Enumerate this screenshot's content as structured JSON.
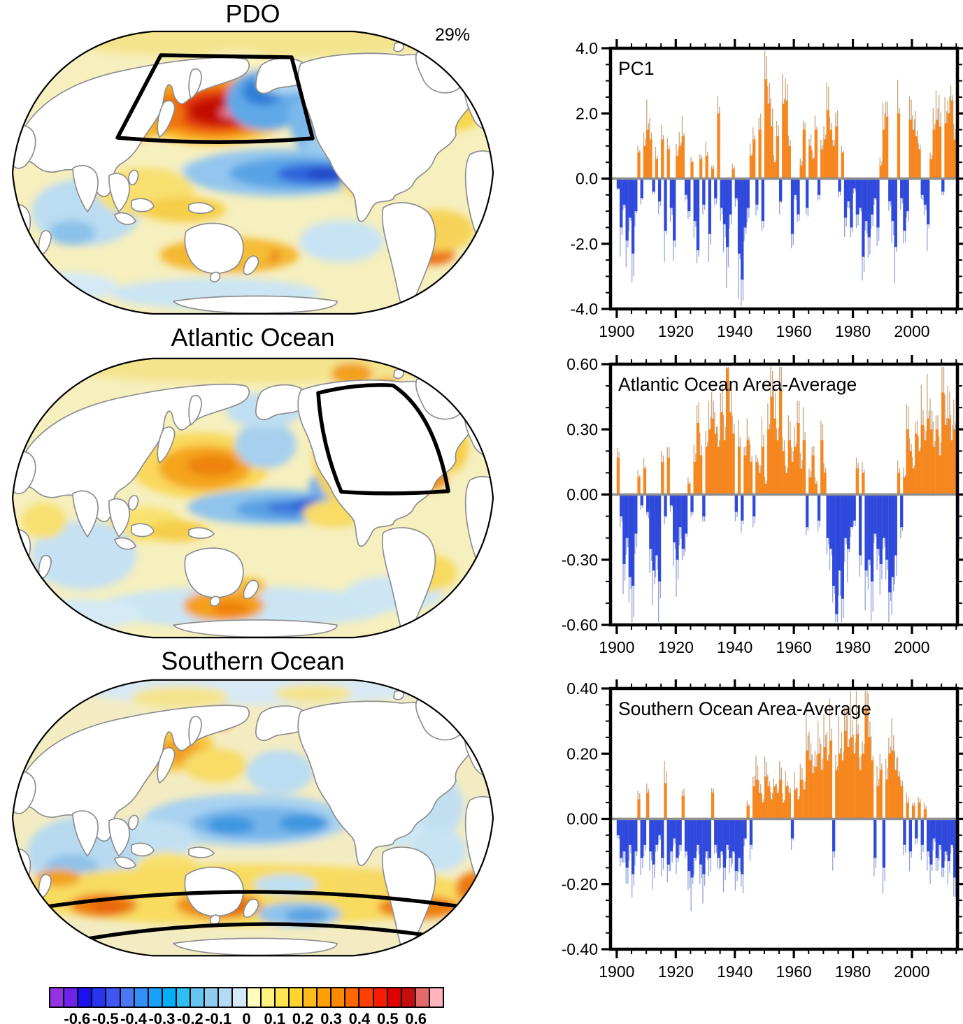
{
  "figure": {
    "maps": [
      {
        "title": "PDO",
        "variance_label": "29%",
        "region_box": "North Pacific"
      },
      {
        "title": "Atlantic Ocean",
        "region_box": "North Atlantic"
      },
      {
        "title": "Southern Ocean",
        "region_box": "Southern Ocean band"
      }
    ],
    "colorbar": {
      "cell_colors": [
        "#9632E6",
        "#6F22EA",
        "#1911EE",
        "#2836F2",
        "#3E57F3",
        "#4A78F5",
        "#3390F8",
        "#19A0FA",
        "#00AFF8",
        "#30BFF4",
        "#63C7F1",
        "#8FCCEE",
        "#B3DBF3",
        "#D4E9F8",
        "#FFFCBE",
        "#FFF380",
        "#FFE550",
        "#FFD42E",
        "#FFBB1C",
        "#FFA106",
        "#FF8A00",
        "#FF6A00",
        "#FF4000",
        "#F91C00",
        "#E10000",
        "#C40D0D",
        "#E26A6A",
        "#FFB4BC"
      ],
      "tick_labels": [
        "-0.6",
        "-0.5",
        "-0.4",
        "-0.3",
        "-0.2",
        "-0.1",
        "0",
        "0.1",
        "0.2",
        "0.3",
        "0.4",
        "0.5",
        "0.6"
      ]
    }
  },
  "chart_data": [
    {
      "type": "bar",
      "title": "PC1",
      "xlabel": "",
      "ylabel": "",
      "x_start": 1900,
      "x_step": 1,
      "x_axis_range": [
        1897.9,
        2015.4
      ],
      "xtick_values": [
        1900,
        1920,
        1940,
        1960,
        1980,
        2000
      ],
      "xminor_step": 5,
      "ylim": [
        -4.0,
        4.0
      ],
      "ytick_values": [
        4.0,
        2.0,
        0.0,
        -2.0,
        -4.0
      ],
      "ytick_labels": [
        "4.0",
        "2.0",
        "0.0",
        "-2.0",
        "-4.0"
      ],
      "yminor_step": 0.5,
      "positive_color": "#F6861E",
      "negative_color": "#2F49DC",
      "series_note": "annual-mean approximation read from figure",
      "values": [
        -0.3,
        -1.5,
        -0.8,
        -1.9,
        -1.2,
        -2.3,
        -1.0,
        0.8,
        -0.6,
        1.0,
        1.5,
        1.2,
        -0.4,
        0.6,
        -0.7,
        1.2,
        -1.6,
        0.9,
        -0.9,
        -1.9,
        0.7,
        1.0,
        1.3,
        -0.5,
        -1.0,
        0.5,
        -1.3,
        -2.2,
        0.6,
        -0.8,
        0.7,
        -1.7,
        0.3,
        -0.6,
        2.0,
        -0.9,
        -1.4,
        -2.1,
        -1.1,
        0.3,
        -0.6,
        -2.3,
        -3.1,
        -1.5,
        -0.9,
        0.7,
        1.2,
        -0.8,
        1.5,
        -1.3,
        3.05,
        2.3,
        1.6,
        0.5,
        1.3,
        -0.7,
        2.3,
        2.4,
        1.0,
        -1.7,
        -0.5,
        -1.1,
        0.4,
        1.5,
        -0.9,
        1.0,
        0.6,
        1.5,
        -0.5,
        0.9,
        1.2,
        2.1,
        1.5,
        1.0,
        1.6,
        -0.4,
        0.8,
        -1.2,
        -0.7,
        -1.5,
        -0.3,
        -1.1,
        -0.9,
        -2.4,
        -1.3,
        -1.8,
        -1.1,
        -0.6,
        -1.5,
        0.4,
        1.5,
        1.9,
        -0.7,
        -1.3,
        -2.1,
        2.0,
        -0.6,
        -1.6,
        -1.0,
        1.8,
        1.5,
        1.3,
        0.9,
        -0.5,
        -0.8,
        -1.4,
        0.6,
        1.5,
        1.8,
        1.6,
        -0.4,
        1.7,
        2.0,
        2.4,
        1.2,
        -0.5
      ]
    },
    {
      "type": "bar",
      "title": "Atlantic Ocean Area-Average",
      "xlabel": "",
      "ylabel": "",
      "x_start": 1900,
      "x_step": 1,
      "x_axis_range": [
        1897.9,
        2015.4
      ],
      "xtick_values": [
        1900,
        1920,
        1940,
        1960,
        1980,
        2000
      ],
      "xminor_step": 5,
      "ylim": [
        -0.6,
        0.6
      ],
      "ytick_values": [
        0.6,
        0.3,
        0.0,
        -0.3,
        -0.6
      ],
      "ytick_labels": [
        "0.60",
        "0.30",
        "0.00",
        "-0.30",
        "-0.60"
      ],
      "yminor_step": 0.1,
      "positive_color": "#F6861E",
      "negative_color": "#2F49DC",
      "series_note": "annual-mean approximation read from figure",
      "values": [
        0.17,
        -0.1,
        -0.32,
        -0.2,
        -0.38,
        -0.42,
        -0.18,
        0.08,
        -0.05,
        0.12,
        -0.08,
        -0.25,
        -0.35,
        -0.28,
        -0.4,
        0.15,
        -0.1,
        0.17,
        -0.05,
        -0.22,
        -0.3,
        -0.15,
        -0.25,
        -0.18,
        0.05,
        -0.08,
        0.15,
        0.33,
        0.18,
        -0.1,
        0.22,
        0.3,
        0.35,
        0.28,
        0.22,
        0.38,
        0.25,
        0.58,
        0.38,
        0.28,
        -0.08,
        0.22,
        -0.12,
        0.18,
        0.25,
        0.15,
        -0.1,
        0.15,
        0.1,
        0.22,
        0.05,
        0.3,
        0.45,
        0.35,
        0.25,
        0.48,
        0.2,
        0.1,
        0.25,
        0.15,
        0.22,
        0.33,
        0.12,
        0.25,
        -0.15,
        0.08,
        0.18,
        0.05,
        -0.12,
        0.25,
        0.1,
        -0.2,
        -0.25,
        -0.42,
        -0.55,
        -0.35,
        -0.48,
        -0.2,
        -0.25,
        -0.15,
        -0.12,
        0.12,
        -0.28,
        0.1,
        -0.35,
        -0.3,
        -0.4,
        -0.18,
        -0.25,
        -0.32,
        -0.2,
        -0.3,
        -0.45,
        -0.38,
        -0.28,
        0.1,
        -0.15,
        0.08,
        0.3,
        0.2,
        0.12,
        0.28,
        0.2,
        0.32,
        0.25,
        0.35,
        0.3,
        0.22,
        0.3,
        0.18,
        0.47,
        0.32,
        0.35,
        0.25,
        0.3,
        -0.22
      ]
    },
    {
      "type": "bar",
      "title": "Southern Ocean Area-Average",
      "xlabel": "",
      "ylabel": "",
      "x_start": 1900,
      "x_step": 1,
      "x_axis_range": [
        1897.9,
        2015.4
      ],
      "xtick_values": [
        1900,
        1920,
        1940,
        1960,
        1980,
        2000
      ],
      "xminor_step": 5,
      "ylim": [
        -0.4,
        0.4
      ],
      "ytick_values": [
        0.4,
        0.2,
        0.0,
        -0.2,
        -0.4
      ],
      "ytick_labels": [
        "0.40",
        "0.20",
        "0.00",
        "-0.20",
        "-0.40"
      ],
      "yminor_step": 0.05,
      "positive_color": "#F6861E",
      "negative_color": "#2F49DC",
      "series_note": "annual-mean approximation read from figure",
      "values": [
        -0.05,
        -0.12,
        -0.1,
        -0.15,
        -0.08,
        -0.17,
        -0.1,
        0.06,
        -0.12,
        -0.08,
        0.08,
        -0.1,
        -0.14,
        -0.08,
        -0.05,
        -0.12,
        0.11,
        -0.14,
        -0.1,
        -0.06,
        -0.12,
        -0.08,
        0.07,
        -0.1,
        -0.16,
        -0.18,
        -0.12,
        -0.08,
        -0.14,
        -0.17,
        -0.1,
        -0.12,
        0.08,
        -0.08,
        -0.12,
        -0.1,
        -0.15,
        -0.08,
        -0.12,
        -0.1,
        -0.16,
        -0.12,
        -0.17,
        -0.06,
        0.04,
        -0.08,
        0.1,
        0.12,
        0.08,
        0.05,
        0.13,
        0.1,
        0.06,
        0.1,
        0.08,
        0.12,
        0.05,
        0.1,
        0.08,
        -0.06,
        0.09,
        0.06,
        0.12,
        0.09,
        0.21,
        0.18,
        0.14,
        0.16,
        0.2,
        0.15,
        0.22,
        0.18,
        0.24,
        -0.1,
        0.15,
        0.2,
        0.18,
        0.27,
        0.22,
        0.25,
        0.2,
        0.26,
        0.15,
        0.2,
        0.34,
        0.25,
        0.18,
        -0.12,
        0.1,
        0.15,
        -0.15,
        0.12,
        0.2,
        0.21,
        0.15,
        0.13,
        0.1,
        -0.08,
        0.05,
        -0.1,
        0.04,
        -0.06,
        0.05,
        -0.08,
        0.03,
        -0.1,
        -0.14,
        -0.06,
        -0.12,
        -0.08,
        -0.15,
        -0.1,
        -0.13,
        -0.08,
        -0.18,
        -0.27
      ]
    }
  ]
}
